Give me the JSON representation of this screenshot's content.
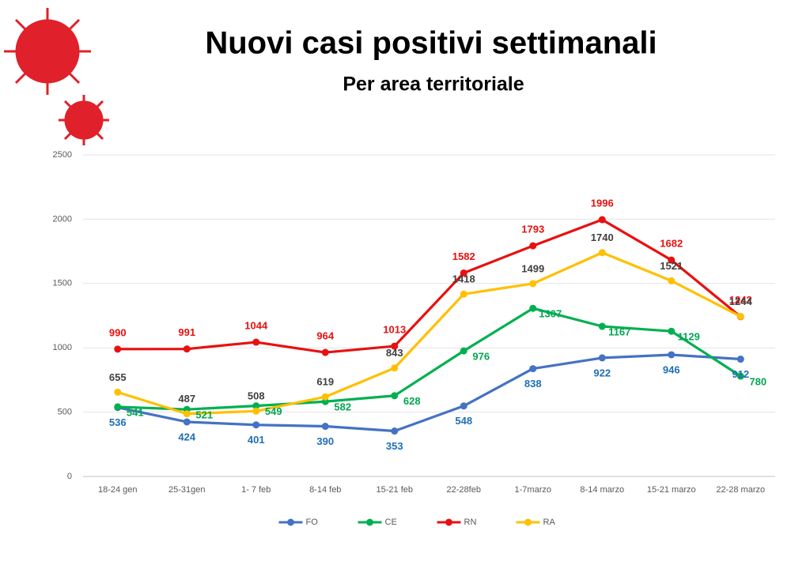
{
  "chart_data": {
    "type": "line",
    "title": "Nuovi casi positivi settimanali",
    "subtitle": "Per area territoriale",
    "categories": [
      "18-24 gen",
      "25-31gen",
      "1- 7 feb",
      "8-14 feb",
      "15-21 feb",
      "22-28feb",
      "1-7marzo",
      "8-14 marzo",
      "15-21 marzo",
      "22-28 marzo"
    ],
    "series": [
      {
        "name": "FO",
        "color": "#4472c4",
        "label_color": "#1f6fb4",
        "values": [
          536,
          424,
          401,
          390,
          353,
          548,
          838,
          922,
          946,
          912
        ]
      },
      {
        "name": "CE",
        "color": "#00b050",
        "label_color": "#00a651",
        "values": [
          541,
          521,
          549,
          582,
          628,
          976,
          1307,
          1167,
          1129,
          780
        ]
      },
      {
        "name": "RN",
        "color": "#e81010",
        "label_color": "#e81010",
        "values": [
          990,
          991,
          1044,
          964,
          1013,
          1582,
          1793,
          1996,
          1682,
          1242
        ]
      },
      {
        "name": "RA",
        "color": "#ffc000",
        "label_color": "#404040",
        "values": [
          655,
          487,
          508,
          619,
          843,
          1418,
          1499,
          1740,
          1521,
          1244
        ]
      }
    ],
    "ylim": [
      0,
      2500
    ],
    "yticks": [
      0,
      500,
      1000,
      1500,
      2000,
      2500
    ],
    "grid": true,
    "legend": "bottom"
  }
}
